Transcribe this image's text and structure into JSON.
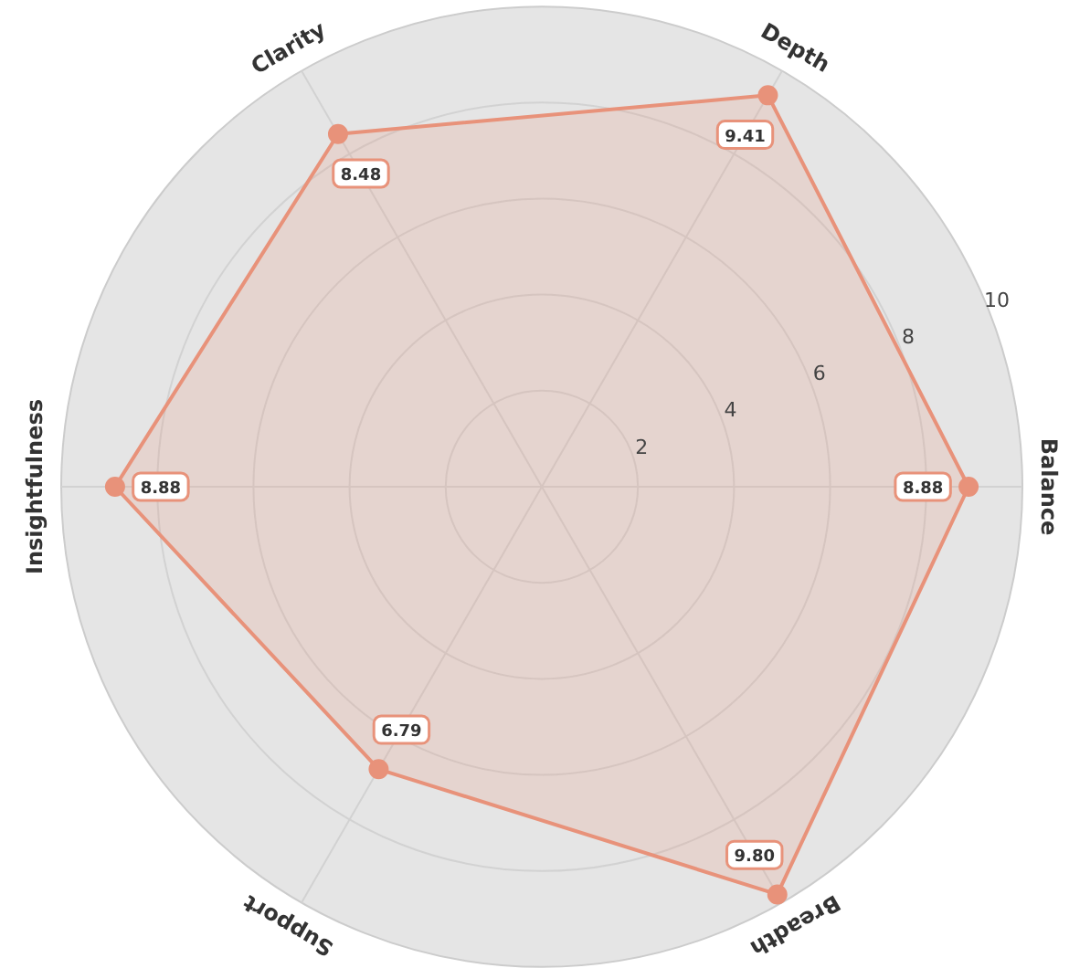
{
  "chart_data": {
    "type": "radar",
    "categories": [
      "Depth",
      "Balance",
      "Breadth",
      "Support",
      "Insightfulness",
      "Clarity"
    ],
    "series": [
      {
        "color": "#e8927a",
        "values": [
          9.41,
          8.88,
          9.8,
          6.79,
          8.88,
          8.48
        ],
        "value_labels": [
          "9.41",
          "8.88",
          "9.80",
          "6.79",
          "8.88",
          "8.48"
        ]
      }
    ],
    "ylim": [
      0,
      10
    ],
    "yticks": [
      2,
      4,
      6,
      8,
      10
    ],
    "grid": true,
    "marker": "circle"
  }
}
